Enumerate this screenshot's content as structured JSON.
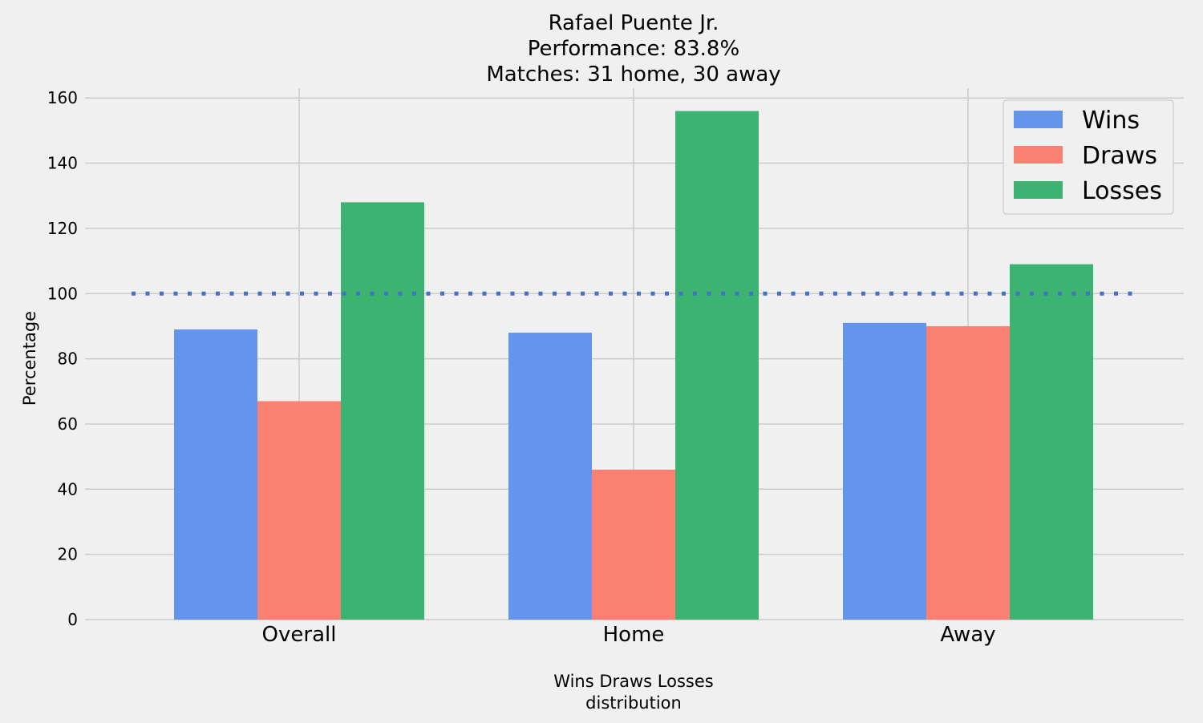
{
  "title_lines": [
    "Rafael Puente Jr.",
    "Performance: 83.8%",
    "Matches: 31 home, 30 away"
  ],
  "chart_data": {
    "type": "bar",
    "categories": [
      "Overall",
      "Home",
      "Away"
    ],
    "series": [
      {
        "name": "Wins",
        "color": "#6495ED",
        "values": [
          89,
          88,
          91
        ]
      },
      {
        "name": "Draws",
        "color": "#FA8072",
        "values": [
          67,
          46,
          90
        ]
      },
      {
        "name": "Losses",
        "color": "#3CB371",
        "values": [
          128,
          156,
          109
        ]
      }
    ],
    "reference_line": {
      "value": 100,
      "style": "dotted",
      "color": "#4472C4"
    },
    "xlabel_lines": [
      "Wins Draws Losses",
      "distribution"
    ],
    "ylabel": "Percentage",
    "ylim": [
      0,
      163
    ],
    "yticks": [
      0,
      20,
      40,
      60,
      80,
      100,
      120,
      140,
      160
    ],
    "grid": true,
    "legend_position": "top-right",
    "background": "#f0f0f0",
    "grid_color": "#cbcbcb"
  }
}
